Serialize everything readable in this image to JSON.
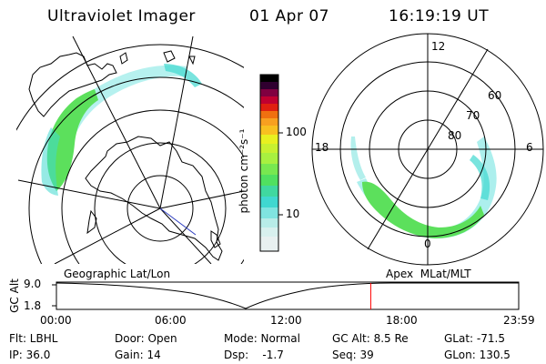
{
  "header": {
    "title": "Ultraviolet Imager",
    "date": "01 Apr 07",
    "time": "16:19:19 UT"
  },
  "colorbar": {
    "unit_label": "photon cm⁻²s⁻¹",
    "ticks": [
      {
        "label": "100",
        "value": 100
      },
      {
        "label": "10",
        "value": 10
      }
    ],
    "colors": [
      "#e8f0f0",
      "#b8ece8",
      "#40d8d0",
      "#60e060",
      "#a8f040",
      "#e8f020",
      "#f8b020",
      "#f07010",
      "#e02010",
      "#c00030",
      "#800040",
      "#300030",
      "#000000"
    ]
  },
  "geo_map": {
    "label": "Geographic Lat/Lon",
    "oval_color": "#5ce05c",
    "fringe_color": "#40d8d0"
  },
  "polar_map": {
    "label": "Apex  MLat/MLT",
    "mlt_labels": {
      "top": "12",
      "left": "18",
      "right": "6",
      "bottom": "0"
    },
    "mlat_labels": [
      "60",
      "70",
      "80"
    ],
    "oval_color": "#5ce05c",
    "fringe_color": "#40d8d0"
  },
  "altitude_plot": {
    "axis_title": "GC Alt",
    "y_ticks": [
      "9.0",
      "1.8"
    ],
    "x_ticks": [
      "00:00",
      "06:00",
      "12:00",
      "18:00",
      "23:59"
    ],
    "current_time_hours": 16.32,
    "marker_color": "#ff0000"
  },
  "info": {
    "flt": "Flt: LBHL",
    "ip": "IP: 36.0",
    "door": "Door: Open",
    "gain": "Gain: 14",
    "mode": "Mode: Normal",
    "dsp": "Dsp:    -1.7",
    "gcalt": "GC Alt: 8.5 Re",
    "seq": "Seq: 39",
    "glat": "GLat: -71.5",
    "glon": "GLon: 130.5"
  }
}
